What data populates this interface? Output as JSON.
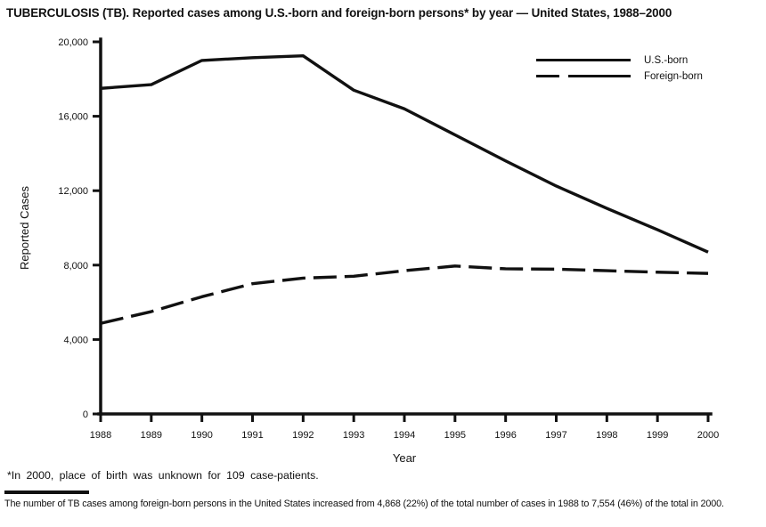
{
  "page": {
    "title": "TUBERCULOSIS (TB). Reported cases among U.S.-born and foreign-born persons* by year — United States, 1988–2000",
    "footnote": "*In 2000, place of birth was unknown for 109 case-patients.",
    "bottom_note": "The number of TB cases among foreign-born persons in the United States increased from 4,868 (22%) of the total number of cases in 1988 to 7,554 (46%) of the total in 2000."
  },
  "colors": {
    "line": "#111111",
    "text": "#111111",
    "background": "#ffffff"
  },
  "chart_data": {
    "type": "line",
    "title": "TUBERCULOSIS (TB). Reported cases among U.S.-born and foreign-born persons* by year — United States, 1988–2000",
    "x": [
      1988,
      1989,
      1990,
      1991,
      1992,
      1993,
      1994,
      1995,
      1996,
      1997,
      1998,
      1999,
      2000
    ],
    "series": [
      {
        "name": "U.S.-born",
        "style": "solid",
        "values": [
          17500,
          17700,
          19000,
          19150,
          19250,
          17400,
          16400,
          15000,
          13600,
          12250,
          11050,
          9900,
          8700
        ]
      },
      {
        "name": "Foreign-born",
        "style": "dashed",
        "values": [
          4868,
          5500,
          6300,
          7000,
          7300,
          7400,
          7700,
          7950,
          7800,
          7780,
          7700,
          7620,
          7554
        ]
      }
    ],
    "xlabel": "Year",
    "ylabel": "Reported Cases",
    "ylim": [
      0,
      20000
    ],
    "yticks": [
      0,
      4000,
      8000,
      12000,
      16000,
      20000
    ],
    "ytick_labels": [
      "0",
      "4,000",
      "8,000",
      "12,000",
      "16,000",
      "20,000"
    ],
    "grid": false,
    "legend_position": "top-right"
  }
}
